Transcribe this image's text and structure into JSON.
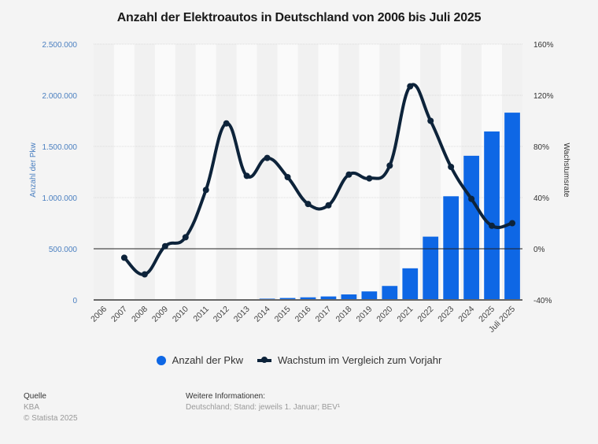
{
  "chart_data": {
    "type": "bar",
    "title": "Anzahl der Elektroautos in Deutschland von 2006 bis Juli 2025",
    "categories": [
      "2006",
      "2007",
      "2008",
      "2009",
      "2010",
      "2011",
      "2012",
      "2013",
      "2014",
      "2015",
      "2016",
      "2017",
      "2018",
      "2019",
      "2020",
      "2021",
      "2022",
      "2023",
      "2024",
      "2025",
      "Juli 2025"
    ],
    "series": [
      {
        "name": "Anzahl der Pkw",
        "type": "bar",
        "axis": "left",
        "color": "#0e67e5",
        "values": [
          1931,
          1790,
          1436,
          1452,
          1588,
          2307,
          4541,
          7114,
          12156,
          18948,
          25502,
          34022,
          53861,
          83175,
          136617,
          309083,
          618460,
          1013009,
          1408681,
          1646000,
          1830000
        ]
      },
      {
        "name": "Wachstum im Vergleich zum Vorjahr",
        "type": "line",
        "axis": "right",
        "color": "#0d233a",
        "values": [
          null,
          -7,
          -20,
          2,
          9,
          46,
          98,
          57,
          71,
          56,
          35,
          34,
          58,
          55,
          65,
          127,
          100,
          64,
          39,
          18,
          20
        ]
      }
    ],
    "xlabel": "",
    "ylabel": "Anzahl der Pkw",
    "y2label": "Wachstumsrate",
    "ylim": [
      0,
      2500000
    ],
    "y2lim": [
      -40,
      160
    ],
    "yticks": [
      "0",
      "500.000",
      "1.000.000",
      "1.500.000",
      "2.000.000",
      "2.500.000"
    ],
    "ytick_values": [
      0,
      500000,
      1000000,
      1500000,
      2000000,
      2500000
    ],
    "y2ticks": [
      "-40%",
      "0%",
      "40%",
      "80%",
      "120%",
      "160%"
    ],
    "y2tick_values": [
      -40,
      0,
      40,
      80,
      120,
      160
    ],
    "grid": true,
    "legend_position": "bottom-center"
  },
  "colors": {
    "bar": "#0e67e5",
    "line": "#0d233a",
    "axis_label_left": "#4a7fc0",
    "axis_label_right": "#333333"
  },
  "legend": {
    "items": [
      {
        "label": "Anzahl der Pkw"
      },
      {
        "label": "Wachstum im Vergleich zum Vorjahr"
      }
    ]
  },
  "footer": {
    "source_heading": "Quelle",
    "source": "KBA",
    "copyright": "© Statista 2025",
    "info_heading": "Weitere Informationen:",
    "info": "Deutschland; Stand: jeweils 1. Januar; BEV¹"
  }
}
